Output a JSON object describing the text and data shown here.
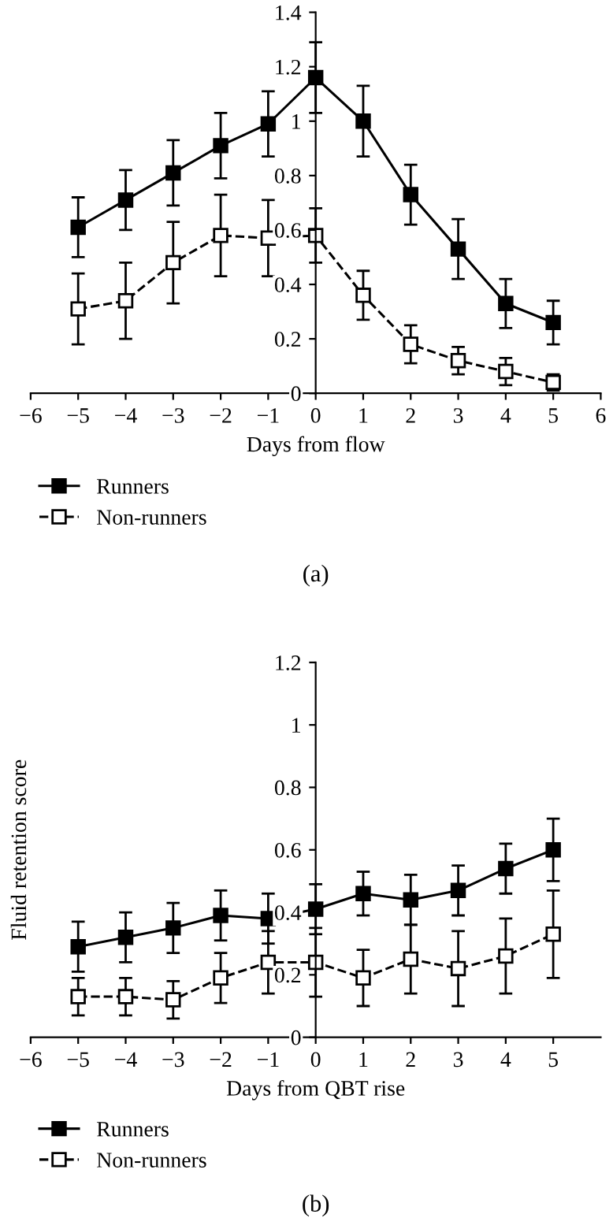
{
  "chart_data": [
    {
      "type": "line",
      "xlabel": "Days from flow",
      "x": [
        -5,
        -4,
        -3,
        -2,
        -1,
        0,
        1,
        2,
        3,
        4,
        5
      ],
      "series": [
        {
          "name": "Runners",
          "color": "#000000",
          "marker": "square",
          "line_style": "solid",
          "values": [
            0.61,
            0.71,
            0.81,
            0.91,
            0.99,
            1.16,
            1.0,
            0.73,
            0.53,
            0.33,
            0.26
          ],
          "errors": [
            0.11,
            0.11,
            0.12,
            0.12,
            0.12,
            0.13,
            0.13,
            0.11,
            0.11,
            0.09,
            0.08
          ]
        },
        {
          "name": "Non-runners",
          "color": "#000000",
          "marker": "square",
          "line_style": "dashed",
          "values": [
            0.31,
            0.34,
            0.48,
            0.58,
            0.57,
            0.58,
            0.36,
            0.18,
            0.12,
            0.08,
            0.04
          ],
          "errors": [
            0.13,
            0.14,
            0.15,
            0.15,
            0.14,
            0.1,
            0.09,
            0.07,
            0.05,
            0.05,
            0.03
          ]
        }
      ],
      "xlim": [
        -6,
        6
      ],
      "xticks": [
        {
          "value": -6,
          "label": "−6"
        },
        {
          "value": -5,
          "label": "−5"
        },
        {
          "value": -4,
          "label": "−4"
        },
        {
          "value": -3,
          "label": "−3"
        },
        {
          "value": -2,
          "label": "−2"
        },
        {
          "value": -1,
          "label": "−1"
        },
        0,
        1,
        2,
        3,
        4,
        5,
        6
      ],
      "ylim": [
        0,
        1.4
      ],
      "yticks": [
        0,
        0.2,
        0.4,
        0.6,
        0.8,
        1,
        1.2,
        1.4
      ],
      "legend": "bottom left",
      "grid": false,
      "annotations": [
        "(a)"
      ]
    },
    {
      "type": "line",
      "xlabel": "Days from QBT rise",
      "ylabel": "Fluid retention score",
      "x": [
        -5,
        -4,
        -3,
        -2,
        -1,
        0,
        1,
        2,
        3,
        4,
        5
      ],
      "series": [
        {
          "name": "Runners",
          "color": "#000000",
          "marker": "square",
          "line_style": "solid",
          "values": [
            0.29,
            0.32,
            0.35,
            0.39,
            0.38,
            0.41,
            0.46,
            0.44,
            0.47,
            0.54,
            0.6
          ],
          "errors": [
            0.08,
            0.08,
            0.08,
            0.08,
            0.08,
            0.08,
            0.07,
            0.08,
            0.08,
            0.08,
            0.1
          ]
        },
        {
          "name": "Non-runners",
          "color": "#000000",
          "marker": "square",
          "line_style": "dashed",
          "values": [
            0.13,
            0.13,
            0.12,
            0.19,
            0.24,
            0.24,
            0.19,
            0.25,
            0.22,
            0.26,
            0.33
          ],
          "errors": [
            0.06,
            0.06,
            0.06,
            0.08,
            0.1,
            0.11,
            0.09,
            0.11,
            0.12,
            0.12,
            0.14
          ]
        }
      ],
      "xlim": [
        -6,
        6
      ],
      "xticks": [
        {
          "value": -6,
          "label": "−6"
        },
        {
          "value": -5,
          "label": "−5"
        },
        {
          "value": -4,
          "label": "−4"
        },
        {
          "value": -3,
          "label": "−3"
        },
        {
          "value": -2,
          "label": "−2"
        },
        {
          "value": -1,
          "label": "−1"
        },
        0,
        1,
        2,
        3,
        4,
        5
      ],
      "ylim": [
        0,
        1.2
      ],
      "yticks": [
        0,
        0.2,
        0.4,
        0.6,
        0.8,
        1,
        1.2
      ],
      "legend": "bottom left",
      "grid": false,
      "annotations": [
        "(b)"
      ]
    }
  ]
}
